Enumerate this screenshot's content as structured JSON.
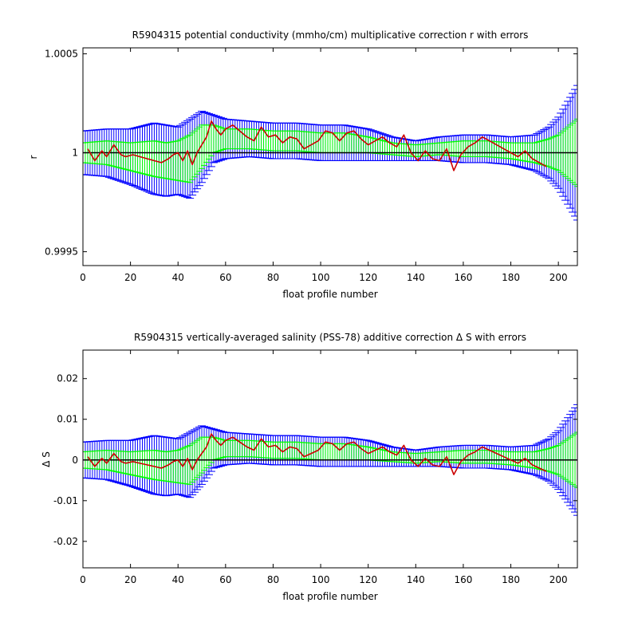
{
  "chart_data": [
    {
      "type": "line",
      "title": "R5904315 potential conductivity (mmho/cm) multiplicative correction r with errors",
      "xlabel": "float profile number",
      "ylabel": "r",
      "xlim": [
        0,
        208
      ],
      "ylim": [
        0.99943,
        1.00053
      ],
      "xticks": [
        0,
        20,
        40,
        60,
        80,
        100,
        120,
        140,
        160,
        180,
        200
      ],
      "xtick_labels": [
        "0",
        "20",
        "40",
        "60",
        "80",
        "100",
        "120",
        "140",
        "160",
        "180",
        "200"
      ],
      "yticks": [
        0.9995,
        1.0,
        1.0005
      ],
      "ytick_labels": [
        "0.9995",
        "1",
        "1.0005"
      ],
      "reference_line": 1.0,
      "colors": {
        "outer_error": "#0000ff",
        "inner_error": "#00ff00",
        "series": "#cc0000",
        "reference": "#000000"
      },
      "error_envelope_x": [
        0,
        10,
        20,
        30,
        35,
        40,
        45,
        50,
        55,
        60,
        70,
        80,
        90,
        100,
        110,
        120,
        130,
        140,
        150,
        160,
        170,
        180,
        190,
        196,
        200,
        204,
        208
      ],
      "error_center": [
        1.0,
        1.0,
        0.99998,
        0.99997,
        0.99996,
        0.99996,
        0.99997,
        1.00003,
        1.00007,
        1.00007,
        1.00007,
        1.00006,
        1.00006,
        1.00005,
        1.00005,
        1.00004,
        1.00002,
        1.00001,
        1.00002,
        1.00002,
        1.00002,
        1.00001,
        1.0,
        1.0,
        1.0,
        1.0,
        1.0
      ],
      "outer_halfwidth": [
        0.00011,
        0.00012,
        0.00014,
        0.00018,
        0.00018,
        0.00017,
        0.0002,
        0.00018,
        0.00012,
        0.0001,
        9e-05,
        9e-05,
        9e-05,
        9e-05,
        9e-05,
        8e-05,
        6e-05,
        5e-05,
        6e-05,
        7e-05,
        7e-05,
        7e-05,
        9e-05,
        0.00013,
        0.00018,
        0.00026,
        0.00034
      ],
      "inner_halfwidth": [
        5e-05,
        6e-05,
        7e-05,
        9e-05,
        9e-05,
        0.0001,
        0.00012,
        0.00011,
        7e-05,
        5e-05,
        5e-05,
        5e-05,
        5e-05,
        5e-05,
        5e-05,
        4e-05,
        3e-05,
        3e-05,
        3e-05,
        4e-05,
        4e-05,
        4e-05,
        5e-05,
        7e-05,
        9e-05,
        0.00013,
        0.00017
      ],
      "series_x": [
        2,
        5,
        8,
        10,
        13,
        16,
        18,
        21,
        24,
        27,
        30,
        33,
        36,
        38,
        40,
        42,
        44,
        46,
        48,
        50,
        52,
        54,
        56,
        58,
        60,
        63,
        66,
        69,
        72,
        75,
        78,
        81,
        84,
        87,
        90,
        93,
        96,
        99,
        102,
        105,
        108,
        111,
        114,
        117,
        120,
        123,
        126,
        129,
        132,
        135,
        138,
        141,
        144,
        147,
        150,
        153,
        156,
        159,
        162,
        165,
        168,
        171,
        174,
        177,
        180,
        183,
        186,
        189,
        192,
        195
      ],
      "series_y": [
        1.00002,
        0.99996,
        1.00001,
        0.99998,
        1.00004,
        0.99999,
        0.99998,
        0.99999,
        0.99998,
        0.99997,
        0.99996,
        0.99995,
        0.99997,
        0.99999,
        1.0,
        0.99996,
        1.00001,
        0.99994,
        1.0,
        1.00004,
        1.00008,
        1.00016,
        1.00012,
        1.00009,
        1.00012,
        1.00014,
        1.00011,
        1.00008,
        1.00006,
        1.00013,
        1.00008,
        1.00009,
        1.00005,
        1.00008,
        1.00007,
        1.00002,
        1.00004,
        1.00006,
        1.00011,
        1.0001,
        1.00006,
        1.0001,
        1.00011,
        1.00007,
        1.00004,
        1.00006,
        1.00008,
        1.00005,
        1.00003,
        1.00009,
        1.0,
        0.99996,
        1.00001,
        0.99997,
        0.99996,
        1.00002,
        0.99991,
        0.99999,
        1.00003,
        1.00005,
        1.00008,
        1.00006,
        1.00004,
        1.00002,
        1.0,
        0.99998,
        1.00001,
        0.99997,
        0.99995,
        0.99993
      ]
    },
    {
      "type": "line",
      "title": "R5904315 vertically-averaged salinity (PSS-78) additive correction Δ S with errors",
      "xlabel": "float profile number",
      "ylabel": "Δ S",
      "xlim": [
        0,
        208
      ],
      "ylim": [
        -0.0265,
        0.027
      ],
      "xticks": [
        0,
        20,
        40,
        60,
        80,
        100,
        120,
        140,
        160,
        180,
        200
      ],
      "xtick_labels": [
        "0",
        "20",
        "40",
        "60",
        "80",
        "100",
        "120",
        "140",
        "160",
        "180",
        "200"
      ],
      "yticks": [
        -0.02,
        -0.01,
        0,
        0.01,
        0.02
      ],
      "ytick_labels": [
        "-0.02",
        "-0.01",
        "0",
        "0.01",
        "0.02"
      ],
      "reference_line": 0,
      "colors": {
        "outer_error": "#0000ff",
        "inner_error": "#00ff00",
        "series": "#cc0000",
        "reference": "#000000"
      },
      "error_envelope_x": [
        0,
        10,
        20,
        30,
        35,
        40,
        45,
        50,
        55,
        60,
        70,
        80,
        90,
        100,
        110,
        120,
        130,
        140,
        150,
        160,
        170,
        180,
        190,
        196,
        200,
        204,
        208
      ],
      "error_center": [
        0.0,
        0.0,
        -0.0008,
        -0.0012,
        -0.0016,
        -0.0016,
        -0.0012,
        0.0012,
        0.0028,
        0.0028,
        0.0028,
        0.0024,
        0.0024,
        0.002,
        0.002,
        0.0016,
        0.0008,
        0.0004,
        0.0008,
        0.0008,
        0.0008,
        0.0004,
        0.0,
        0.0,
        0.0,
        0.0,
        0.0
      ],
      "outer_halfwidth": [
        0.0044,
        0.0048,
        0.0056,
        0.0072,
        0.0072,
        0.0068,
        0.008,
        0.0072,
        0.0048,
        0.004,
        0.0036,
        0.0036,
        0.0036,
        0.0036,
        0.0036,
        0.0032,
        0.0024,
        0.002,
        0.0024,
        0.0028,
        0.0028,
        0.0028,
        0.0036,
        0.0052,
        0.0072,
        0.0104,
        0.0136
      ],
      "inner_halfwidth": [
        0.002,
        0.0024,
        0.0028,
        0.0036,
        0.0036,
        0.004,
        0.0048,
        0.0044,
        0.0028,
        0.002,
        0.002,
        0.002,
        0.002,
        0.002,
        0.002,
        0.0016,
        0.0012,
        0.0012,
        0.0012,
        0.0016,
        0.0016,
        0.0016,
        0.002,
        0.0028,
        0.0036,
        0.0052,
        0.0068
      ],
      "series_x": [
        2,
        5,
        8,
        10,
        13,
        16,
        18,
        21,
        24,
        27,
        30,
        33,
        36,
        38,
        40,
        42,
        44,
        46,
        48,
        50,
        52,
        54,
        56,
        58,
        60,
        63,
        66,
        69,
        72,
        75,
        78,
        81,
        84,
        87,
        90,
        93,
        96,
        99,
        102,
        105,
        108,
        111,
        114,
        117,
        120,
        123,
        126,
        129,
        132,
        135,
        138,
        141,
        144,
        147,
        150,
        153,
        156,
        159,
        162,
        165,
        168,
        171,
        174,
        177,
        180,
        183,
        186,
        189,
        192,
        195
      ],
      "series_y": [
        0.0008,
        -0.0016,
        0.0004,
        -0.0008,
        0.0016,
        -0.0004,
        -0.0008,
        -0.0004,
        -0.0008,
        -0.0012,
        -0.0016,
        -0.002,
        -0.0012,
        -0.0004,
        0.0,
        -0.0016,
        0.0004,
        -0.0024,
        0.0,
        0.0016,
        0.0032,
        0.0064,
        0.0048,
        0.0036,
        0.0048,
        0.0056,
        0.0044,
        0.0032,
        0.0024,
        0.0052,
        0.0032,
        0.0036,
        0.002,
        0.0032,
        0.0028,
        0.0008,
        0.0016,
        0.0024,
        0.0044,
        0.004,
        0.0024,
        0.004,
        0.0044,
        0.0028,
        0.0016,
        0.0024,
        0.0032,
        0.002,
        0.0012,
        0.0036,
        0.0,
        -0.0016,
        0.0004,
        -0.0012,
        -0.0016,
        0.0008,
        -0.0036,
        -0.0004,
        0.0012,
        0.002,
        0.0032,
        0.0024,
        0.0016,
        0.0008,
        0.0,
        -0.0008,
        0.0004,
        -0.0012,
        -0.002,
        -0.0028
      ]
    }
  ]
}
